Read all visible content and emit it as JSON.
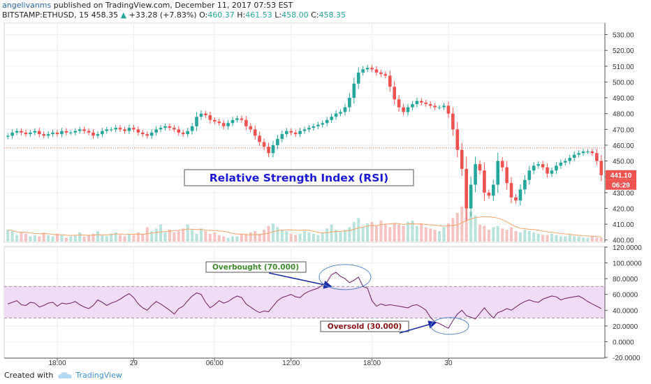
{
  "header": {
    "author": "angelivanms",
    "published_text": "published on TradingView.com, December 11, 2017 07:53 EST",
    "symbol": "BITSTAMP:ETHUSD, 15",
    "last": "458.35",
    "change": "+33.28 (+7.83%)",
    "o_label": "O:",
    "o_value": "460.37",
    "h_label": "H:",
    "h_value": "461.53",
    "l_label": "L:",
    "l_value": "458.00",
    "c_label": "C:",
    "c_value": "458.35"
  },
  "footer": {
    "created_with": "Created with",
    "brand": "TradingView"
  },
  "colors": {
    "up": "#26a69a",
    "down": "#ef5350",
    "rsi_line": "#7b2d6e",
    "rsi_band": "#f0dcf5",
    "title_text": "#1a1ad4",
    "overbought_text": "#3d8a2c",
    "oversold_text": "#8a1414",
    "arrow": "#1a2aa8",
    "ellipse": "#5a86c8"
  },
  "chart_data": [
    {
      "type": "candlestick",
      "title": "Relative Strength Index (RSI)",
      "ylim": [
        399,
        536
      ],
      "yticks": [
        "530.00",
        "520.00",
        "510.00",
        "500.00",
        "490.00",
        "480.00",
        "470.00",
        "460.00",
        "450.00",
        "440.00",
        "430.00",
        "420.00",
        "410.00",
        "400.00"
      ],
      "xticks": [
        "18:00",
        "29",
        "06:00",
        "12:00",
        "18:00",
        "30"
      ],
      "price_labels": [
        "441.10",
        "06:29"
      ],
      "reference_price": 458.35,
      "close": [
        466,
        468,
        469,
        468,
        467,
        468,
        469,
        467,
        466,
        467,
        468,
        467,
        469,
        468,
        468,
        469,
        470,
        469,
        468,
        466,
        467,
        469,
        470,
        470,
        471,
        470,
        469,
        471,
        470,
        468,
        467,
        466,
        468,
        470,
        471,
        472,
        471,
        470,
        468,
        467,
        469,
        472,
        478,
        480,
        479,
        476,
        475,
        474,
        472,
        474,
        476,
        477,
        476,
        472,
        470,
        466,
        462,
        459,
        455,
        460,
        464,
        467,
        469,
        468,
        467,
        469,
        470,
        471,
        472,
        473,
        474,
        476,
        478,
        480,
        481,
        484,
        490,
        499,
        506,
        508,
        509,
        508,
        506,
        505,
        504,
        497,
        489,
        484,
        481,
        484,
        486,
        488,
        487,
        486,
        485,
        484,
        484,
        485,
        480,
        470,
        457,
        445,
        420,
        435,
        448,
        444,
        430,
        428,
        435,
        450,
        446,
        436,
        427,
        425,
        432,
        438,
        444,
        447,
        448,
        446,
        442,
        444,
        447,
        449,
        450,
        452,
        454,
        455,
        456,
        456,
        455,
        450,
        441
      ],
      "volume": [
        9,
        8,
        5,
        7,
        6,
        4,
        5,
        4,
        7,
        5,
        4,
        6,
        5,
        3,
        4,
        5,
        7,
        4,
        5,
        6,
        8,
        5,
        4,
        6,
        7,
        5,
        4,
        6,
        5,
        7,
        6,
        11,
        8,
        10,
        13,
        7,
        9,
        7,
        8,
        10,
        13,
        9,
        6,
        10,
        8,
        6,
        7,
        5,
        4,
        3,
        4,
        4,
        6,
        6,
        7,
        8,
        6,
        9,
        12,
        14,
        11,
        9,
        8,
        6,
        5,
        6,
        8,
        7,
        6,
        5,
        7,
        10,
        13,
        9,
        8,
        9,
        11,
        15,
        18,
        11,
        14,
        15,
        12,
        16,
        13,
        11,
        14,
        13,
        12,
        15,
        16,
        12,
        14,
        11,
        10,
        9,
        8,
        11,
        14,
        18,
        22,
        27,
        31,
        23,
        20,
        13,
        12,
        9,
        11,
        12,
        10,
        9,
        11,
        8,
        7,
        9,
        8,
        7,
        6,
        5,
        5,
        6,
        5,
        4,
        4,
        5,
        4,
        4,
        3,
        3,
        4,
        3,
        3
      ]
    },
    {
      "type": "line",
      "title": "Relative Strength Index (RSI)",
      "ylim": [
        -20,
        120
      ],
      "yticks": [
        "120.0000",
        "100.0000",
        "80.0000",
        "60.0000",
        "40.0000",
        "20.0000",
        "0.0000",
        "-20.0000"
      ],
      "overbought_label": "Overbought (70.000)",
      "oversold_label": "Oversold (30.000)",
      "band": [
        30,
        70
      ],
      "values": [
        48,
        50,
        52,
        47,
        46,
        50,
        49,
        44,
        46,
        49,
        50,
        45,
        49,
        48,
        49,
        51,
        47,
        44,
        42,
        46,
        53,
        50,
        46,
        49,
        51,
        54,
        58,
        61,
        56,
        48,
        43,
        40,
        46,
        51,
        48,
        44,
        40,
        35,
        42,
        45,
        52,
        58,
        62,
        60,
        50,
        43,
        47,
        52,
        49,
        51,
        55,
        58,
        56,
        48,
        44,
        40,
        37,
        39,
        38,
        45,
        52,
        56,
        58,
        60,
        57,
        56,
        61,
        64,
        66,
        68,
        72,
        76,
        85,
        88,
        83,
        80,
        75,
        78,
        82,
        70,
        68,
        52,
        45,
        48,
        46,
        47,
        46,
        45,
        44,
        43,
        46,
        47,
        44,
        40,
        31,
        25,
        23,
        20,
        17,
        27,
        35,
        40,
        33,
        31,
        29,
        36,
        43,
        36,
        30,
        37,
        39,
        42,
        40,
        44,
        48,
        51,
        53,
        51,
        50,
        54,
        56,
        58,
        57,
        53,
        55,
        56,
        57,
        58,
        55,
        51,
        48,
        45,
        42
      ]
    }
  ]
}
